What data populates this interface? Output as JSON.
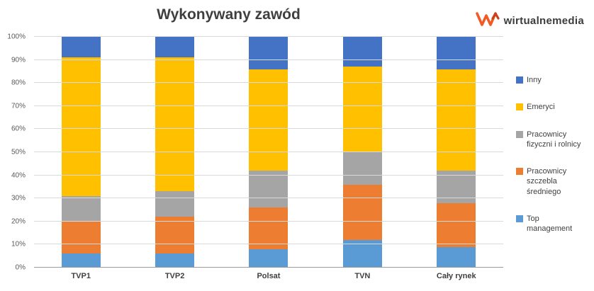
{
  "title": "Wykonywany zawód",
  "logo": {
    "text": "wirtualnemedia",
    "icon": "wm-logo-icon",
    "icon_color": "#f15a24",
    "text_color": "#3c3c3b"
  },
  "chart_data": {
    "type": "bar",
    "stacked": true,
    "title": "Wykonywany zawód",
    "xlabel": "",
    "ylabel": "",
    "categories": [
      "TVP1",
      "TVP2",
      "Polsat",
      "TVN",
      "Cały rynek"
    ],
    "series": [
      {
        "name": "Top management",
        "color": "#5B9BD5",
        "values": [
          6,
          6,
          8,
          12,
          9
        ]
      },
      {
        "name": "Pracownicy szczebla średniego",
        "color": "#ED7D31",
        "values": [
          14,
          16,
          18,
          24,
          19
        ]
      },
      {
        "name": "Pracownicy fizyczni i rolnicy",
        "color": "#A5A5A5",
        "values": [
          11,
          11,
          16,
          14,
          14
        ]
      },
      {
        "name": "Emeryci",
        "color": "#FFC000",
        "values": [
          60,
          58,
          44,
          37,
          44
        ]
      },
      {
        "name": "Inny",
        "color": "#4472C4",
        "values": [
          9,
          9,
          14,
          13,
          14
        ]
      }
    ],
    "ylim": [
      0,
      100
    ],
    "ytick_step": 10,
    "ytick_labels": [
      "0%",
      "10%",
      "20%",
      "30%",
      "40%",
      "50%",
      "60%",
      "70%",
      "80%",
      "90%",
      "100%"
    ],
    "grid": true,
    "legend_position": "right",
    "legend_order": [
      "Inny",
      "Emeryci",
      "Pracownicy fizyczni i rolnicy",
      "Pracownicy szczebla średniego",
      "Top management"
    ]
  }
}
